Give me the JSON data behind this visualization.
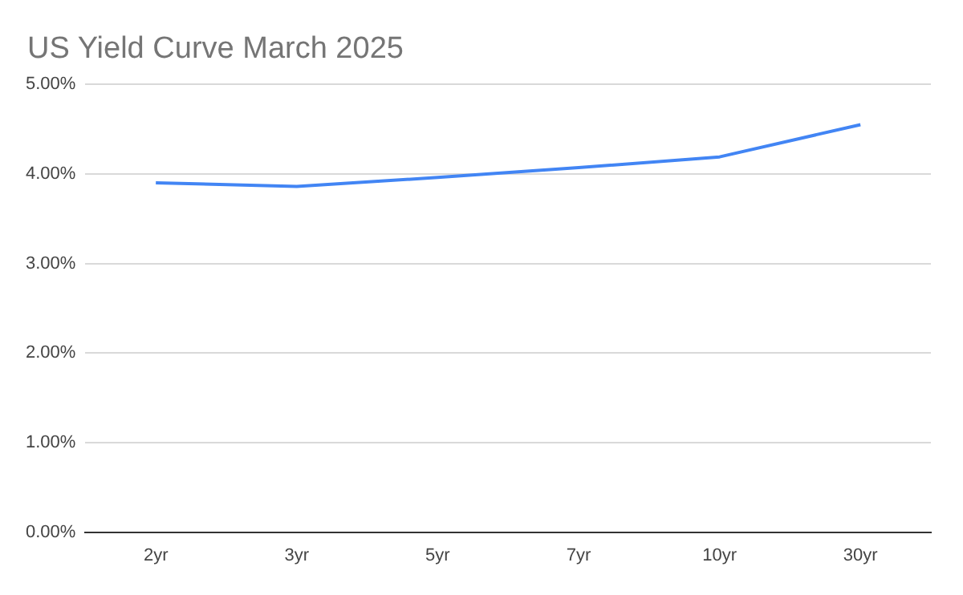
{
  "chart_data": {
    "type": "line",
    "title": "US Yield Curve March 2025",
    "categories": [
      "2yr",
      "3yr",
      "5yr",
      "7yr",
      "10yr",
      "30yr"
    ],
    "series": [
      {
        "color": "#4285f4",
        "values": [
          3.9,
          3.86,
          3.96,
          4.07,
          4.19,
          4.55
        ]
      }
    ],
    "ylim": [
      0,
      5
    ],
    "yticks": [
      {
        "value": 0,
        "label": "0.00%"
      },
      {
        "value": 1,
        "label": "1.00%"
      },
      {
        "value": 2,
        "label": "2.00%"
      },
      {
        "value": 3,
        "label": "3.00%"
      },
      {
        "value": 4,
        "label": "4.00%"
      },
      {
        "value": 5,
        "label": "5.00%"
      }
    ],
    "grid": "y",
    "legend": false,
    "marker": "none",
    "line_style": "solid"
  }
}
